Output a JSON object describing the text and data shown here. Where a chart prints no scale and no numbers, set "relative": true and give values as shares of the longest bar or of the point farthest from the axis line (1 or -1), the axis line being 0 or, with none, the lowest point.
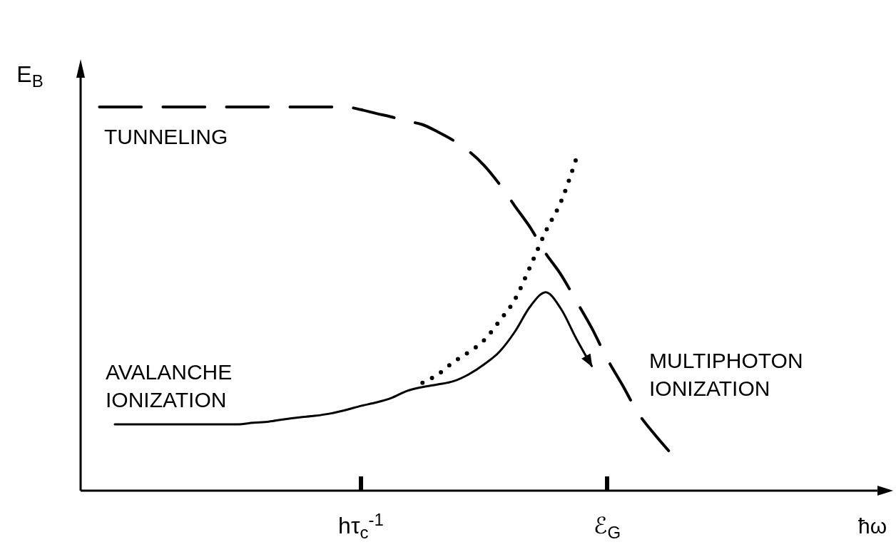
{
  "chart_data": {
    "type": "line",
    "relative": true,
    "ylabel": "E$_{B}$",
    "categories": [
      null,
      null,
      null,
      null,
      null,
      null,
      null,
      null,
      null,
      null,
      null,
      null,
      null,
      null,
      null,
      null,
      null,
      "hτ$_{c}$$^{-1}$",
      null,
      null,
      null,
      null,
      null,
      null,
      null,
      null,
      null,
      null,
      null,
      null,
      null,
      null,
      null,
      "ℰ$_{G}$",
      null,
      null,
      null,
      null
    ],
    "series": [
      {
        "name": "TUNNELING",
        "color": "#000000",
        "line_style": "dashed",
        "values": [
          1,
          1,
          1,
          1,
          1,
          1,
          1,
          1,
          1,
          1,
          1,
          1,
          1,
          1,
          1,
          1,
          1,
          0.993,
          0.983,
          0.974,
          0.963,
          0.954,
          0.935,
          0.913,
          0.885,
          0.848,
          0.799,
          0.742,
          0.686,
          0.619,
          0.563,
          0.494,
          0.424,
          0.344,
          0.275,
          0.203,
          0.151,
          0.104
        ]
      },
      {
        "name": "AVALANCHE IONIZATION",
        "color": "#000000",
        "line_style": "solid",
        "values": [
          null,
          0.173,
          0.173,
          0.173,
          0.173,
          0.173,
          0.173,
          0.173,
          0.173,
          0.173,
          0.177,
          0.18,
          0.186,
          0.191,
          0.195,
          0.201,
          0.21,
          0.221,
          0.23,
          0.242,
          0.26,
          0.27,
          0.277,
          0.285,
          0.303,
          0.329,
          0.362,
          0.414,
          0.48,
          0.517,
          0.474,
          0.396,
          0.325,
          null,
          null,
          null,
          null,
          null
        ]
      },
      {
        "color": "#000000",
        "line_style": "dotted",
        "values": [
          null,
          null,
          null,
          null,
          null,
          null,
          null,
          null,
          null,
          null,
          null,
          null,
          null,
          null,
          null,
          null,
          null,
          null,
          null,
          null,
          null,
          0.281,
          0.303,
          0.335,
          0.361,
          0.392,
          0.442,
          0.498,
          0.584,
          0.675,
          0.753,
          0.866,
          null,
          null,
          null,
          null,
          null,
          null
        ]
      }
    ],
    "annotations": [
      "MULTIPHOTON IONIZATION",
      "ħω"
    ]
  }
}
